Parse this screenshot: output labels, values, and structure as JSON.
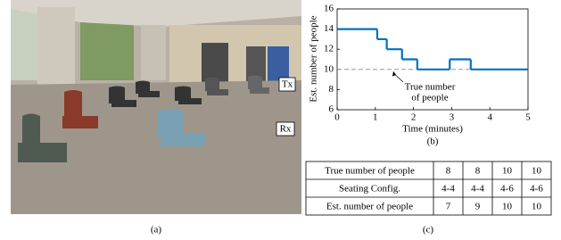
{
  "photo": {
    "tx_label": "Tx",
    "rx_label": "Rx",
    "caption": "(a)"
  },
  "chart_data": {
    "type": "line",
    "x": [
      0,
      1.05,
      1.3,
      1.7,
      2.1,
      2.95,
      3.5
    ],
    "step": "post",
    "series": [
      {
        "name": "Est. number of people",
        "color": "#0072bd",
        "values": [
          14,
          13,
          12,
          11,
          10,
          11,
          10
        ]
      }
    ],
    "reference_line": {
      "value": 10,
      "color": "#999999"
    },
    "annotation": [
      "True number",
      "of people"
    ],
    "xlabel": "Time (minutes)",
    "ylabel": "Est. number of people",
    "caption": "(b)",
    "xlim": [
      0,
      5
    ],
    "xticks": [
      0,
      1,
      2,
      3,
      4,
      5
    ],
    "ylim": [
      6,
      16
    ],
    "yticks": [
      6,
      8,
      10,
      12,
      14,
      16
    ],
    "grid": true
  },
  "table": {
    "rows": [
      [
        "True number of people",
        8,
        8,
        10,
        10
      ],
      [
        "Seating Config.",
        "4-4",
        "4-4",
        "4-6",
        "4-6"
      ],
      [
        "Est. number of people",
        7,
        9,
        10,
        10
      ]
    ],
    "caption": "(c)"
  }
}
